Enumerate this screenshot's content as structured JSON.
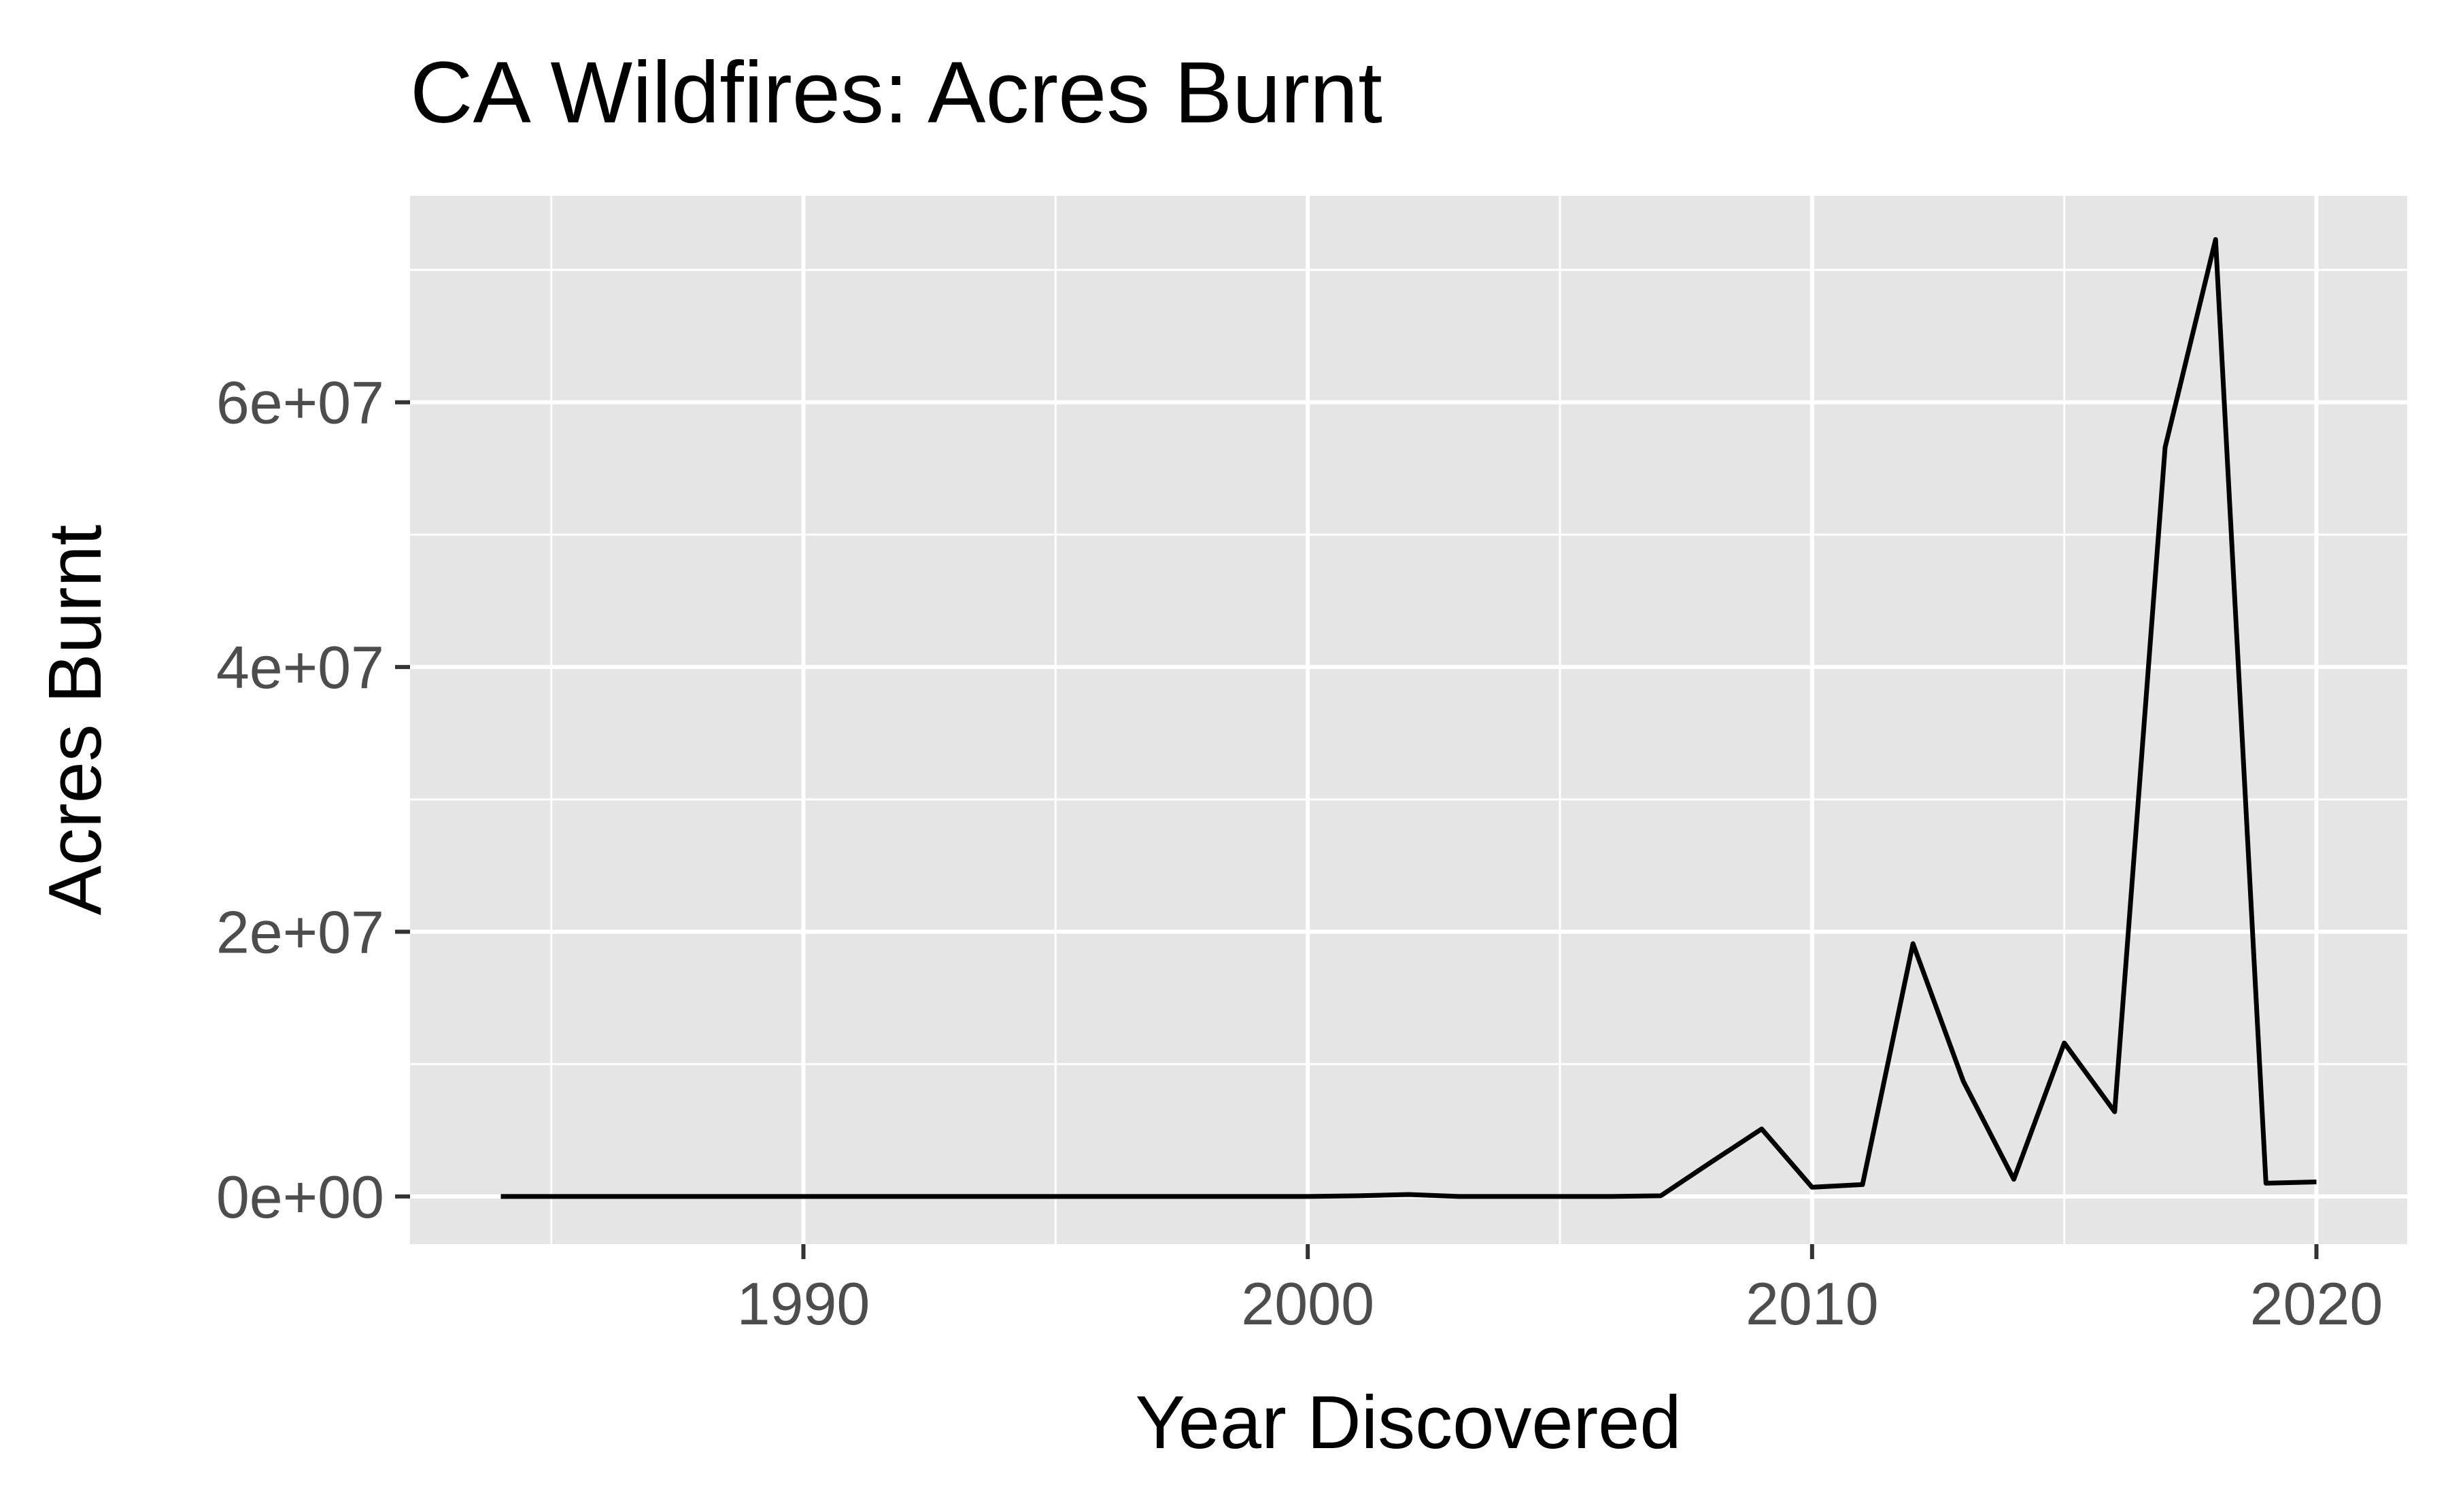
{
  "chart_data": {
    "type": "line",
    "title": "CA Wildfires: Acres Burnt",
    "xlabel": "Year Discovered",
    "ylabel": "Acres Burnt",
    "xlim": [
      1982.2,
      2021.8
    ],
    "ylim": [
      -3600000,
      75600000
    ],
    "x_ticks": [
      1990,
      2000,
      2010,
      2020
    ],
    "x_tick_labels": [
      "1990",
      "2000",
      "2010",
      "2020"
    ],
    "x_minor_ticks": [
      1985,
      1995,
      2005,
      2015
    ],
    "y_ticks": [
      0,
      20000000,
      40000000,
      60000000
    ],
    "y_tick_labels": [
      "0e+00",
      "2e+07",
      "4e+07",
      "6e+07"
    ],
    "y_minor_ticks": [
      10000000,
      30000000,
      50000000,
      70000000
    ],
    "grid": true,
    "legend": "none",
    "colors": {
      "panel": "#e5e5e5",
      "grid": "#ffffff",
      "line": "#000000",
      "tick_text": "#4d4d4d",
      "tick_mark": "#333333"
    },
    "series": [
      {
        "x": [
          1984,
          1985,
          1986,
          1987,
          1988,
          1989,
          1990,
          1991,
          1992,
          1993,
          1994,
          1995,
          1996,
          1997,
          1998,
          1999,
          2000,
          2001,
          2002,
          2003,
          2004,
          2005,
          2006,
          2007,
          2008,
          2009,
          2010,
          2011,
          2012,
          2013,
          2014,
          2015,
          2016,
          2017,
          2018,
          2019,
          2020
        ],
        "y": [
          0,
          0,
          0,
          0,
          0,
          0,
          0,
          0,
          0,
          0,
          0,
          0,
          0,
          0,
          0,
          0,
          0,
          50000,
          150000,
          0,
          0,
          0,
          0,
          50000,
          2600000,
          5100000,
          700000,
          900000,
          19100000,
          8700000,
          1300000,
          11600000,
          6400000,
          56600000,
          72300000,
          1000000,
          1100000
        ]
      }
    ]
  }
}
